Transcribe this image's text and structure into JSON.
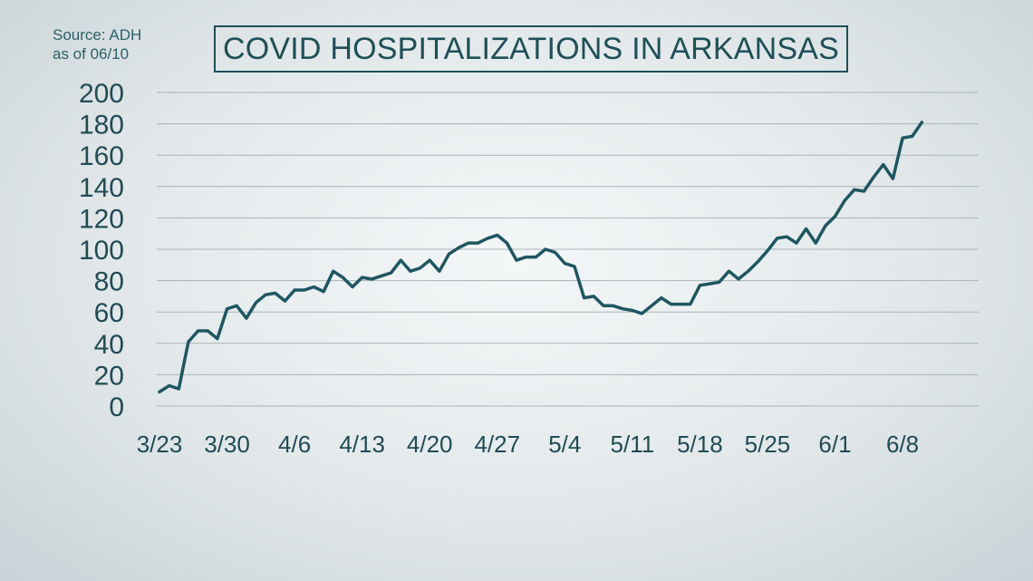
{
  "source": {
    "line1": "Source: ADH",
    "line2": "as of 06/10"
  },
  "colors": {
    "line": "#1f5660",
    "grid": "#a9b3b7",
    "text": "#214b55"
  },
  "chart_data": {
    "type": "line",
    "title": "COVID HOSPITALIZATIONS IN ARKANSAS",
    "xlabel": "",
    "ylabel": "",
    "ylim": [
      0,
      200
    ],
    "yticks": [
      0,
      20,
      40,
      60,
      80,
      100,
      120,
      140,
      160,
      180,
      200
    ],
    "xtick_labels": [
      "3/23",
      "3/30",
      "4/6",
      "4/13",
      "4/20",
      "4/27",
      "5/4",
      "5/11",
      "5/18",
      "5/25",
      "6/1",
      "6/8"
    ],
    "grid": true,
    "legend": "none",
    "x": [
      "3/23",
      "3/24",
      "3/25",
      "3/26",
      "3/27",
      "3/28",
      "3/29",
      "3/30",
      "3/31",
      "4/1",
      "4/2",
      "4/3",
      "4/4",
      "4/5",
      "4/6",
      "4/7",
      "4/8",
      "4/9",
      "4/10",
      "4/11",
      "4/12",
      "4/13",
      "4/14",
      "4/15",
      "4/16",
      "4/17",
      "4/18",
      "4/19",
      "4/20",
      "4/21",
      "4/22",
      "4/23",
      "4/24",
      "4/25",
      "4/26",
      "4/27",
      "4/28",
      "4/29",
      "4/30",
      "5/1",
      "5/2",
      "5/3",
      "5/4",
      "5/5",
      "5/6",
      "5/7",
      "5/8",
      "5/9",
      "5/10",
      "5/11",
      "5/12",
      "5/13",
      "5/14",
      "5/15",
      "5/16",
      "5/17",
      "5/18",
      "5/19",
      "5/20",
      "5/21",
      "5/22",
      "5/23",
      "5/24",
      "5/25",
      "5/26",
      "5/27",
      "5/28",
      "5/29",
      "5/30",
      "5/31",
      "6/1",
      "6/2",
      "6/3",
      "6/4",
      "6/5",
      "6/6",
      "6/7",
      "6/8",
      "6/9",
      "6/10"
    ],
    "series": [
      {
        "values": [
          9,
          13,
          11,
          41,
          48,
          48,
          43,
          62,
          64,
          56,
          66,
          71,
          72,
          67,
          74,
          74,
          76,
          73,
          86,
          82,
          76,
          82,
          81,
          83,
          85,
          93,
          86,
          88,
          93,
          86,
          97,
          101,
          104,
          104,
          107,
          109,
          104,
          93,
          95,
          95,
          100,
          98,
          91,
          89,
          69,
          70,
          64,
          64,
          62,
          61,
          59,
          64,
          69,
          65,
          65,
          65,
          77,
          78,
          79,
          86,
          81,
          86,
          92,
          99,
          107,
          108,
          104,
          113,
          104,
          115,
          121,
          131,
          138,
          137,
          146,
          154,
          145,
          171,
          172,
          181
        ]
      }
    ]
  }
}
